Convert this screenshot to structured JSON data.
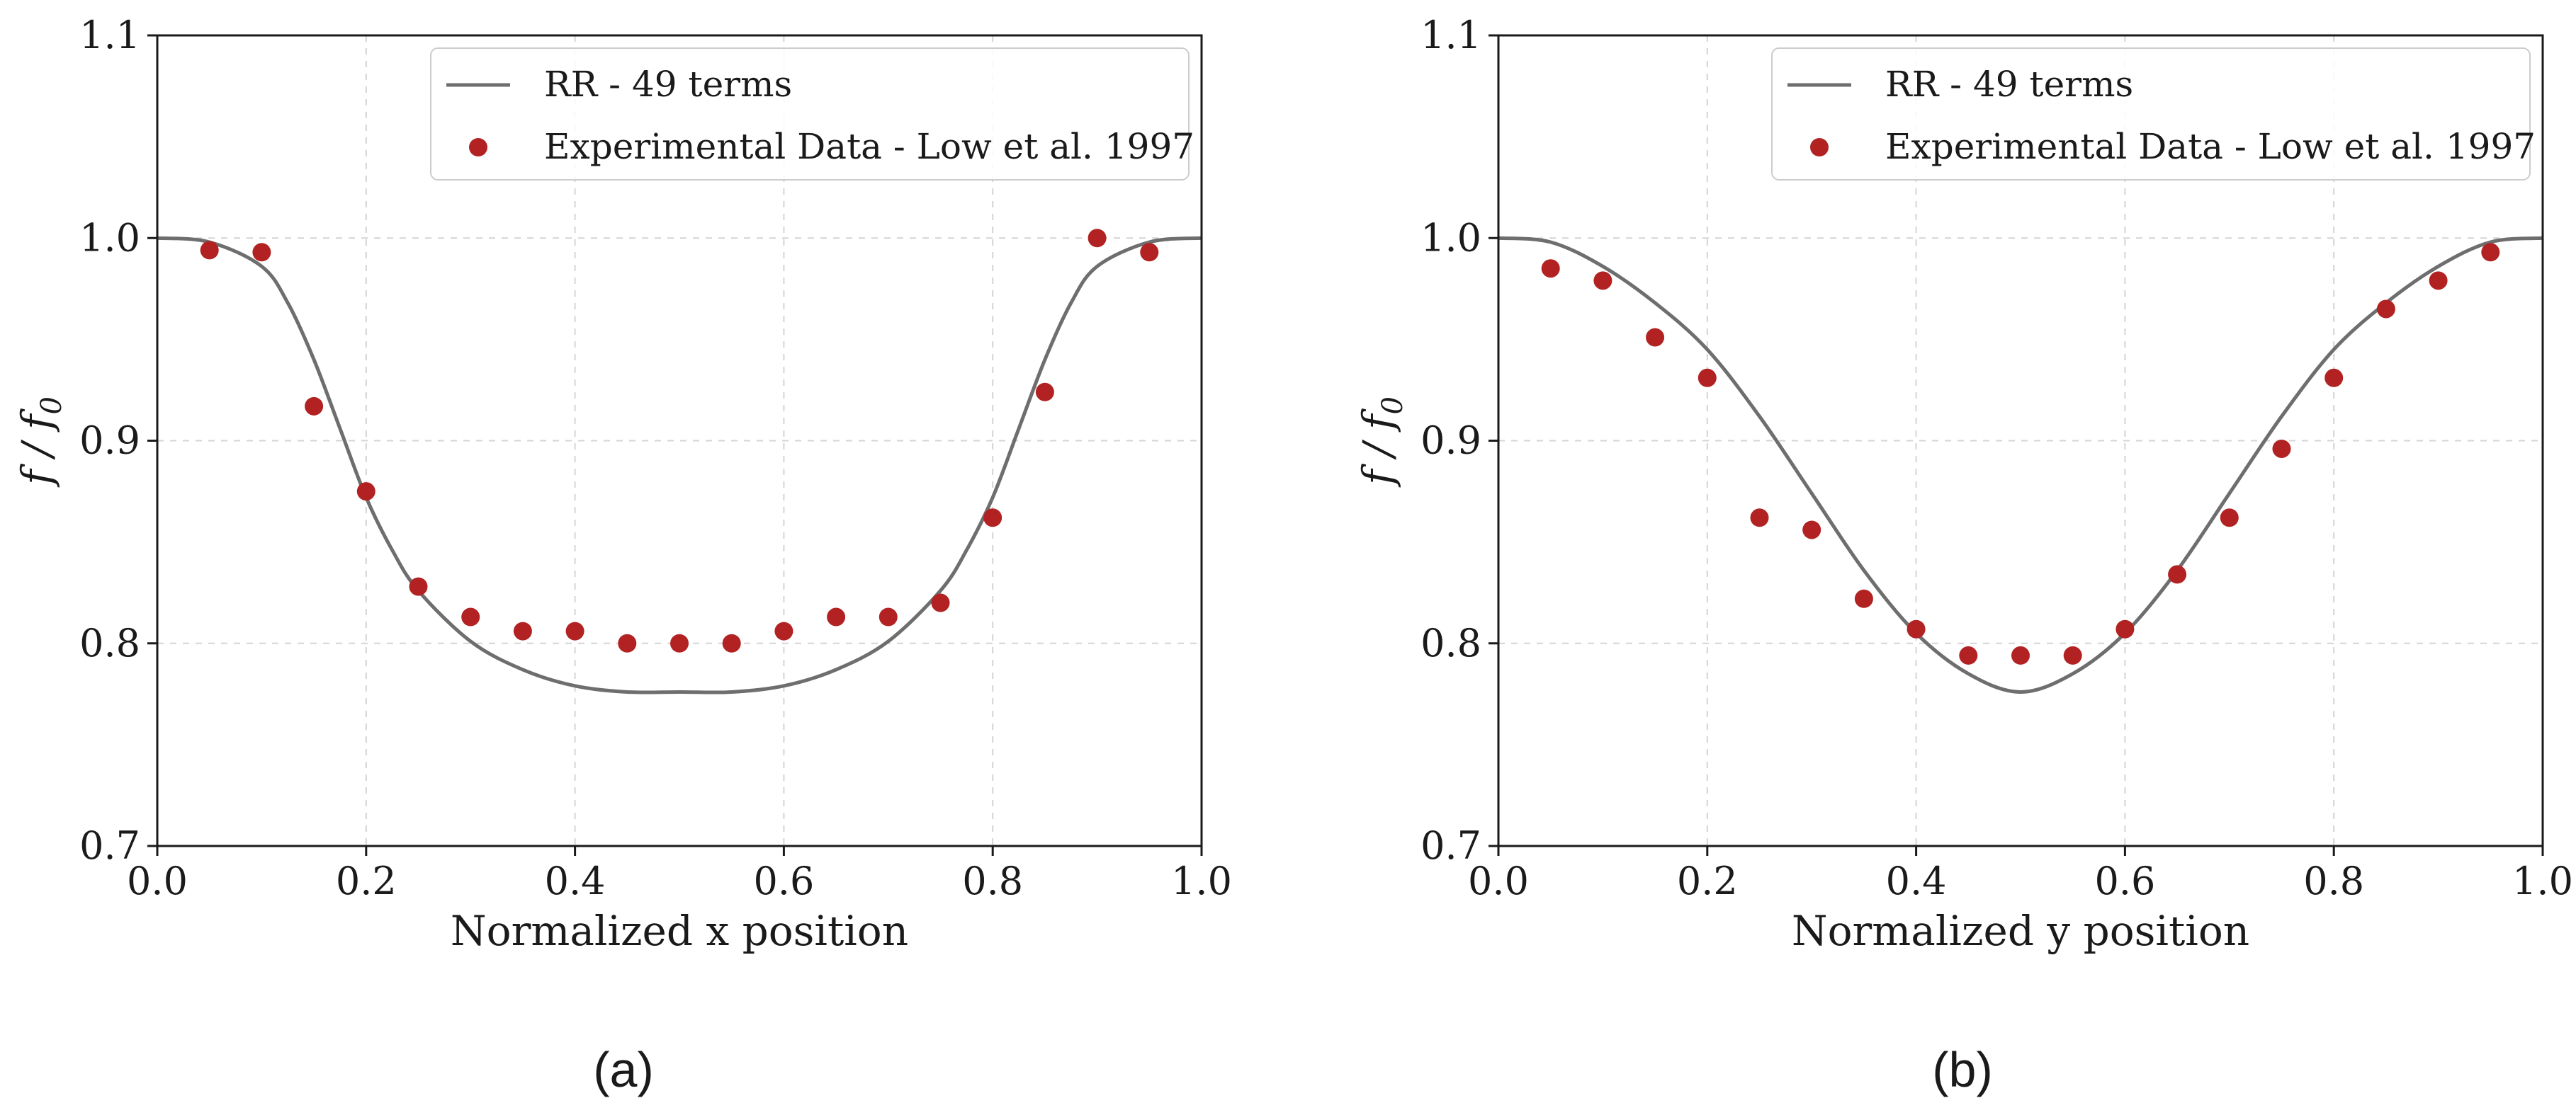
{
  "chart_data": [
    {
      "panel": "a",
      "caption": "(a)",
      "type": "line",
      "xlabel": "Normalized x position",
      "ylabel": "f / f",
      "ylabel_sub": "0",
      "xlim": [
        0.0,
        1.0
      ],
      "ylim": [
        0.7,
        1.1
      ],
      "xticks": [
        0.0,
        0.2,
        0.4,
        0.6,
        0.8,
        1.0
      ],
      "xtick_labels": [
        "0.0",
        "0.2",
        "0.4",
        "0.6",
        "0.8",
        "1.0"
      ],
      "yticks": [
        0.7,
        0.8,
        0.9,
        1.0,
        1.1
      ],
      "ytick_labels": [
        "0.7",
        "0.8",
        "0.9",
        "1.0",
        "1.1"
      ],
      "grid": true,
      "legend_position": "top-right",
      "series": [
        {
          "name": "RR - 49 terms",
          "kind": "line",
          "color": "#6e6e6e",
          "x": [
            0.0,
            0.05,
            0.1,
            0.125,
            0.15,
            0.175,
            0.2,
            0.225,
            0.25,
            0.3,
            0.35,
            0.4,
            0.45,
            0.5,
            0.55,
            0.6,
            0.65,
            0.7,
            0.75,
            0.775,
            0.8,
            0.825,
            0.85,
            0.875,
            0.9,
            0.95,
            1.0
          ],
          "y": [
            1.0,
            0.998,
            0.986,
            0.968,
            0.94,
            0.906,
            0.872,
            0.846,
            0.826,
            0.801,
            0.787,
            0.779,
            0.776,
            0.776,
            0.776,
            0.779,
            0.787,
            0.801,
            0.826,
            0.846,
            0.872,
            0.906,
            0.94,
            0.968,
            0.986,
            0.998,
            1.0
          ]
        },
        {
          "name": "Experimental Data - Low et al. 1997",
          "kind": "scatter",
          "color": "#b22222",
          "x": [
            0.05,
            0.1,
            0.15,
            0.2,
            0.25,
            0.3,
            0.35,
            0.4,
            0.45,
            0.5,
            0.55,
            0.6,
            0.65,
            0.7,
            0.75,
            0.8,
            0.85,
            0.9,
            0.95
          ],
          "y": [
            0.994,
            0.993,
            0.917,
            0.875,
            0.828,
            0.813,
            0.806,
            0.806,
            0.8,
            0.8,
            0.8,
            0.806,
            0.813,
            0.813,
            0.82,
            0.862,
            0.924,
            1.0,
            0.993
          ]
        }
      ]
    },
    {
      "panel": "b",
      "caption": "(b)",
      "type": "line",
      "xlabel": "Normalized y position",
      "ylabel": "f / f",
      "ylabel_sub": "0",
      "xlim": [
        0.0,
        1.0
      ],
      "ylim": [
        0.7,
        1.1
      ],
      "xticks": [
        0.0,
        0.2,
        0.4,
        0.6,
        0.8,
        1.0
      ],
      "xtick_labels": [
        "0.0",
        "0.2",
        "0.4",
        "0.6",
        "0.8",
        "1.0"
      ],
      "yticks": [
        0.7,
        0.8,
        0.9,
        1.0,
        1.1
      ],
      "ytick_labels": [
        "0.7",
        "0.8",
        "0.9",
        "1.0",
        "1.1"
      ],
      "grid": true,
      "legend_position": "top-right",
      "series": [
        {
          "name": "RR - 49 terms",
          "kind": "line",
          "color": "#6e6e6e",
          "x": [
            0.0,
            0.05,
            0.1,
            0.15,
            0.2,
            0.25,
            0.3,
            0.35,
            0.4,
            0.45,
            0.5,
            0.55,
            0.6,
            0.65,
            0.7,
            0.75,
            0.8,
            0.85,
            0.9,
            0.95,
            1.0
          ],
          "y": [
            1.0,
            0.998,
            0.986,
            0.968,
            0.945,
            0.912,
            0.874,
            0.836,
            0.805,
            0.785,
            0.776,
            0.785,
            0.805,
            0.836,
            0.874,
            0.912,
            0.945,
            0.968,
            0.986,
            0.998,
            1.0
          ]
        },
        {
          "name": "Experimental Data - Low et al. 1997",
          "kind": "scatter",
          "color": "#b22222",
          "x": [
            0.05,
            0.1,
            0.15,
            0.2,
            0.25,
            0.3,
            0.35,
            0.4,
            0.45,
            0.5,
            0.55,
            0.6,
            0.65,
            0.7,
            0.75,
            0.8,
            0.85,
            0.9,
            0.95
          ],
          "y": [
            0.985,
            0.979,
            0.951,
            0.931,
            0.862,
            0.856,
            0.822,
            0.807,
            0.794,
            0.794,
            0.794,
            0.807,
            0.834,
            0.862,
            0.896,
            0.931,
            0.965,
            0.979,
            0.993
          ]
        }
      ]
    }
  ]
}
